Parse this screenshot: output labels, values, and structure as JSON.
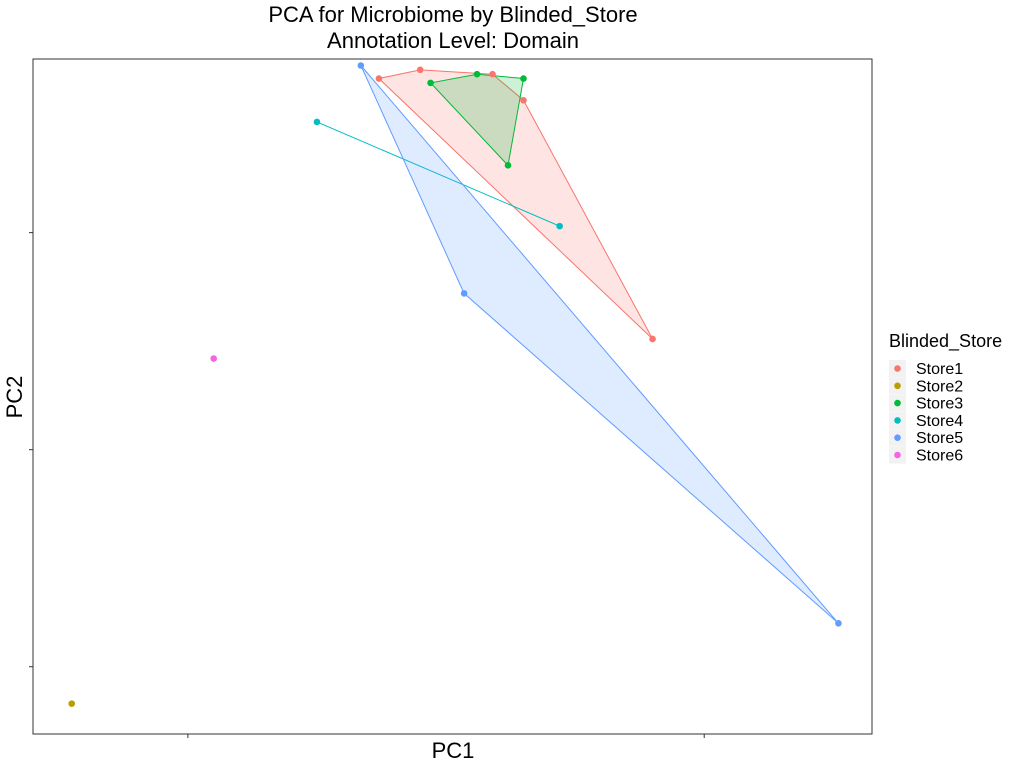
{
  "chart_data": {
    "type": "scatter",
    "title": "PCA for Microbiome by Blinded_Store",
    "subtitle": "Annotation Level: Domain",
    "xlabel": "PC1",
    "ylabel": "PC2",
    "xlim": [
      -0.5,
      15.75
    ],
    "ylim": [
      -0.3,
      15.25
    ],
    "x_ticks": [
      2.5,
      12.5
    ],
    "y_ticks": [
      1.25,
      6.25,
      11.25
    ],
    "grid": false,
    "legend_title": "Blinded_Store",
    "legend_position": "right",
    "hulls": true,
    "series": [
      {
        "name": "Store1",
        "color": "#F8766D",
        "points": [
          [
            6.2,
            14.8
          ],
          [
            7.0,
            15.0
          ],
          [
            8.4,
            14.9
          ],
          [
            9.0,
            14.3
          ],
          [
            11.5,
            8.8
          ]
        ]
      },
      {
        "name": "Store2",
        "color": "#B79F00",
        "points": [
          [
            0.25,
            0.4
          ]
        ]
      },
      {
        "name": "Store3",
        "color": "#00BA38",
        "points": [
          [
            7.2,
            14.7
          ],
          [
            8.1,
            14.9
          ],
          [
            9.0,
            14.8
          ],
          [
            8.7,
            12.8
          ]
        ]
      },
      {
        "name": "Store4",
        "color": "#00BFC4",
        "points": [
          [
            5.0,
            13.8
          ],
          [
            9.7,
            11.4
          ]
        ]
      },
      {
        "name": "Store5",
        "color": "#619CFF",
        "points": [
          [
            5.85,
            15.1
          ],
          [
            7.85,
            9.85
          ],
          [
            15.1,
            2.25
          ]
        ]
      },
      {
        "name": "Store6",
        "color": "#F564E3",
        "points": [
          [
            3.0,
            8.35
          ]
        ]
      }
    ]
  }
}
